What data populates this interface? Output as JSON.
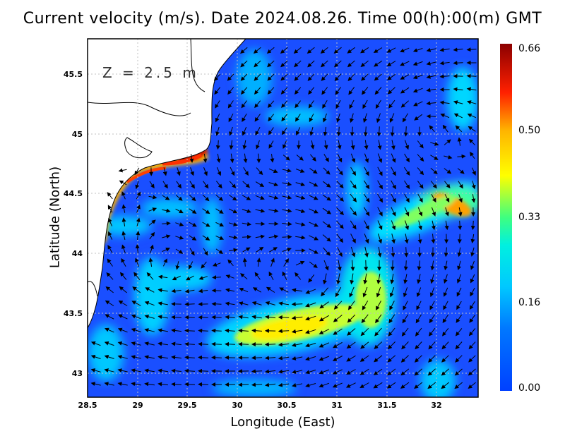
{
  "title": "Current velocity (m/s). Date 2024.08.26. Time 00(h):00(m) GMT",
  "depth_label": "Z = 2.5 m",
  "xlabel": "Longitude (East)",
  "ylabel": "Latitude (North)",
  "x_ticks": [
    "28.5",
    "29",
    "29.5",
    "30",
    "30.5",
    "31",
    "31.5",
    "32"
  ],
  "y_ticks": [
    "43",
    "43.5",
    "44",
    "44.5",
    "45",
    "45.5"
  ],
  "colorbar": {
    "ticks": [
      "0.66",
      "0.50",
      "0.33",
      "0.16",
      "0.00"
    ],
    "values": [
      0.66,
      0.5,
      0.33,
      0.16,
      0.0
    ],
    "colors": [
      "#8b0000",
      "#ff0000",
      "#ffb400",
      "#ffff00",
      "#3fff7f",
      "#00e5ff",
      "#0078ff",
      "#0040ff"
    ]
  },
  "chart_data": {
    "type": "heatmap",
    "x_range": [
      28.5,
      32.4
    ],
    "y_range": [
      42.8,
      45.8
    ],
    "grid": true,
    "value_range": [
      0.0,
      0.66
    ],
    "units": "m/s"
  }
}
